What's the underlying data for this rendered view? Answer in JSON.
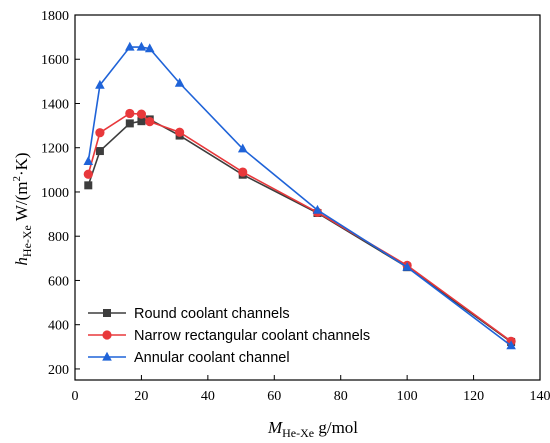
{
  "chart_data": {
    "type": "line",
    "xlabel": {
      "main": "M",
      "sub": "He-Xe",
      "unit": " g/mol"
    },
    "ylabel": {
      "main": "h",
      "sub": "He-Xe",
      "unit_pre": " W/(m",
      "sup": "2",
      "unit_post": "·K)"
    },
    "xlim": [
      0,
      140
    ],
    "ylim": [
      150,
      1800
    ],
    "xticks": [
      0,
      20,
      40,
      60,
      80,
      100,
      120,
      140
    ],
    "yticks": [
      200,
      400,
      600,
      800,
      1000,
      1200,
      1400,
      1600,
      1800
    ],
    "grid": false,
    "legend_position": "bottom-left",
    "series": [
      {
        "name": "Round coolant channels",
        "color": "#3d3d3d",
        "marker": "square",
        "x": [
          4,
          7.5,
          16.5,
          20,
          22.5,
          31.5,
          50.5,
          73,
          100,
          131.3
        ],
        "y": [
          1030,
          1185,
          1310,
          1320,
          1328,
          1255,
          1078,
          905,
          660,
          322
        ]
      },
      {
        "name": "Narrow rectangular coolant channels",
        "color": "#e8383b",
        "marker": "circle",
        "x": [
          4,
          7.5,
          16.5,
          20,
          22.5,
          31.5,
          50.5,
          73,
          100,
          131.3
        ],
        "y": [
          1080,
          1268,
          1355,
          1352,
          1318,
          1270,
          1090,
          908,
          668,
          325
        ]
      },
      {
        "name": "Annular coolant channel",
        "color": "#1f63d8",
        "marker": "triangle",
        "x": [
          4,
          7.5,
          16.5,
          20,
          22.5,
          31.5,
          50.5,
          73,
          100,
          131.3
        ],
        "y": [
          1138,
          1483,
          1655,
          1655,
          1648,
          1492,
          1195,
          918,
          660,
          305
        ]
      }
    ]
  }
}
